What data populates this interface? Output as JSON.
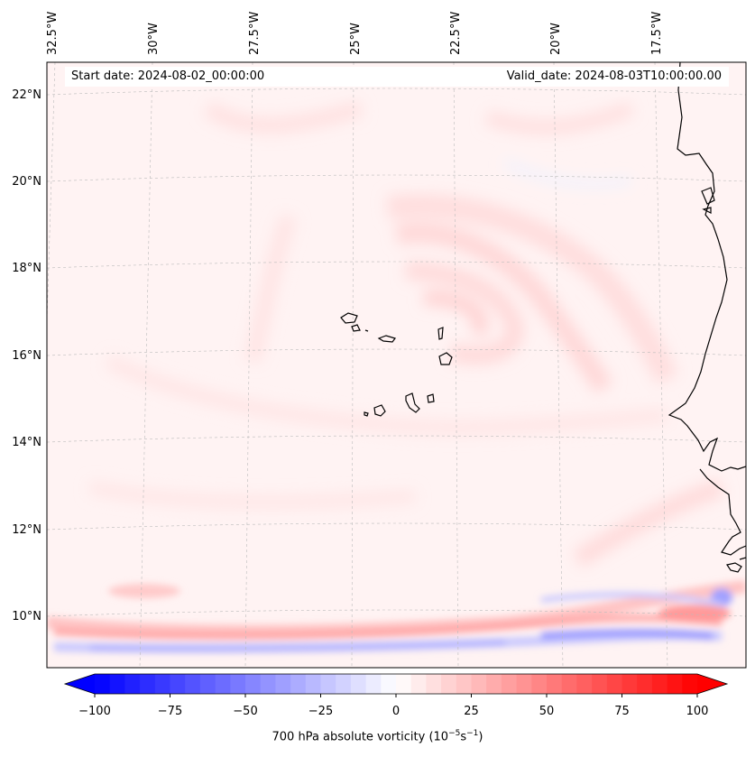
{
  "map": {
    "start_date": "Start date: 2024-08-02_00:00:00",
    "valid_date": "Valid_date: 2024-08-03T10:00:00.00",
    "lon_labels": [
      "32.5°W",
      "30°W",
      "27.5°W",
      "25°W",
      "22.5°W",
      "20°W",
      "17.5°W"
    ],
    "lat_labels": [
      "22°N",
      "20°N",
      "18°N",
      "16°N",
      "14°N",
      "12°N",
      "10°N"
    ],
    "colors": {
      "negative": "#0000ff",
      "positive": "#ff0000",
      "coast": "#000000",
      "grid": "#bbbbbb"
    }
  },
  "colorbar": {
    "label_text": "700 hPa absolute vorticity (10",
    "label_exp1": "−5",
    "label_mid": "s",
    "label_exp2": "−1",
    "label_close": ")",
    "ticks": [
      "−100",
      "−75",
      "−50",
      "−25",
      "0",
      "25",
      "50",
      "75",
      "100"
    ],
    "min": -100,
    "max": 100,
    "levels": 40
  }
}
